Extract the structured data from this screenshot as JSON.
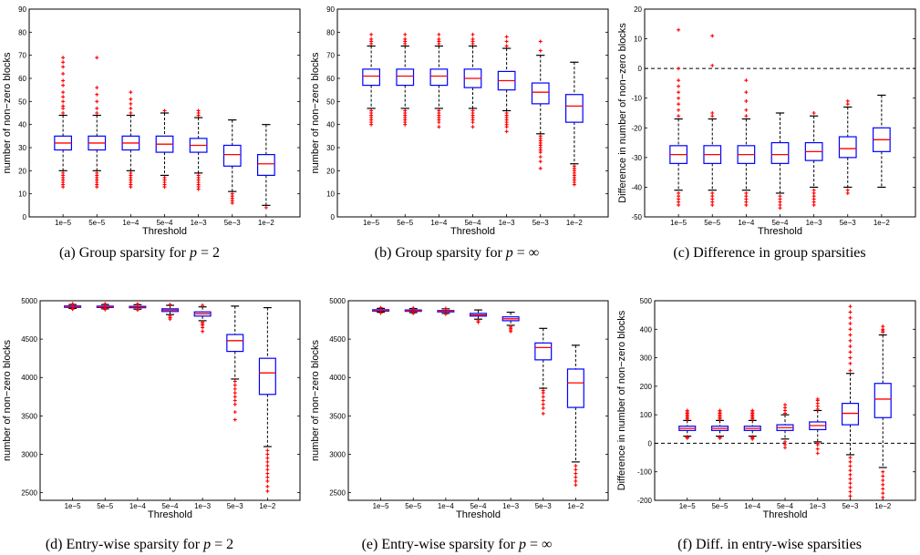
{
  "styles": {
    "box_color": "#0000ff",
    "median_color": "#ff0000",
    "outlier_color": "#ff0000",
    "whisker_color": "#000000"
  },
  "chart_data": [
    {
      "type": "boxplot",
      "caption": "(a) Group sparsity for p = 2",
      "caption_parts": [
        "(a) Group sparsity for ",
        "p",
        " = 2"
      ],
      "xlabel": "Threshold",
      "ylabel": "number of non−zero blocks",
      "ylim": [
        0,
        90
      ],
      "yticks": [
        0,
        10,
        20,
        30,
        40,
        50,
        60,
        70,
        80,
        90
      ],
      "categories": [
        "1e−5",
        "5e−5",
        "1e−4",
        "5e−4",
        "1e−3",
        "5e−3",
        "1e−2"
      ],
      "boxes": [
        {
          "whislo": 20,
          "q1": 29,
          "med": 32,
          "q3": 35,
          "whishi": 44,
          "outliers": [
            13,
            14,
            15,
            16,
            17,
            18,
            19,
            45,
            47,
            48,
            50,
            52,
            54,
            57,
            59,
            62,
            65,
            67,
            69
          ]
        },
        {
          "whislo": 20,
          "q1": 29,
          "med": 32,
          "q3": 35,
          "whishi": 44,
          "outliers": [
            13,
            14,
            15,
            16,
            17,
            18,
            19,
            45,
            47,
            50,
            53,
            56,
            69
          ]
        },
        {
          "whislo": 20,
          "q1": 29,
          "med": 32,
          "q3": 35,
          "whishi": 44,
          "outliers": [
            13,
            14,
            15,
            16,
            17,
            18,
            19,
            45,
            47,
            49,
            51,
            54
          ]
        },
        {
          "whislo": 18,
          "q1": 28,
          "med": 31.5,
          "q3": 35,
          "whishi": 45,
          "outliers": [
            13,
            14,
            15,
            16,
            17,
            46
          ]
        },
        {
          "whislo": 19,
          "q1": 28,
          "med": 31,
          "q3": 34,
          "whishi": 43,
          "outliers": [
            12,
            13,
            14,
            15,
            16,
            17,
            18,
            44,
            45,
            46
          ]
        },
        {
          "whislo": 11,
          "q1": 22,
          "med": 27,
          "q3": 31,
          "whishi": 42,
          "outliers": [
            6,
            7,
            8,
            9,
            10
          ]
        },
        {
          "whislo": 5,
          "q1": 18,
          "med": 23,
          "q3": 27,
          "whishi": 40,
          "outliers": [
            4
          ]
        }
      ]
    },
    {
      "type": "boxplot",
      "caption": "(b) Group sparsity for p = ∞",
      "caption_parts": [
        "(b) Group sparsity for ",
        "p",
        " = ∞"
      ],
      "xlabel": "Threshold",
      "ylabel": "number of non−zero blocks",
      "ylim": [
        0,
        90
      ],
      "yticks": [
        0,
        10,
        20,
        30,
        40,
        50,
        60,
        70,
        80,
        90
      ],
      "categories": [
        "1e−5",
        "5e−5",
        "1e−4",
        "5e−4",
        "1e−3",
        "5e−3",
        "1e−2"
      ],
      "boxes": [
        {
          "whislo": 47,
          "q1": 57,
          "med": 61,
          "q3": 64,
          "whishi": 74,
          "outliers": [
            40,
            41,
            42,
            43,
            44,
            45,
            46,
            75,
            76,
            77,
            79
          ]
        },
        {
          "whislo": 47,
          "q1": 57,
          "med": 61,
          "q3": 64,
          "whishi": 74,
          "outliers": [
            40,
            41,
            42,
            43,
            44,
            45,
            46,
            75,
            76,
            77,
            79
          ]
        },
        {
          "whislo": 47,
          "q1": 57,
          "med": 61,
          "q3": 64,
          "whishi": 74,
          "outliers": [
            39,
            41,
            42,
            43,
            44,
            45,
            46,
            75,
            76,
            77,
            79
          ]
        },
        {
          "whislo": 47,
          "q1": 56,
          "med": 60,
          "q3": 64,
          "whishi": 74,
          "outliers": [
            39,
            41,
            42,
            43,
            44,
            45,
            46,
            75,
            76,
            77,
            79
          ]
        },
        {
          "whislo": 46,
          "q1": 55,
          "med": 59,
          "q3": 63,
          "whishi": 73,
          "outliers": [
            37,
            39,
            40,
            41,
            42,
            43,
            44,
            45,
            74,
            76,
            78
          ]
        },
        {
          "whislo": 36,
          "q1": 49,
          "med": 54,
          "q3": 58,
          "whishi": 70,
          "outliers": [
            21,
            24,
            26,
            28,
            29,
            30,
            31,
            32,
            33,
            34,
            35,
            72,
            76
          ]
        },
        {
          "whislo": 23,
          "q1": 41,
          "med": 48,
          "q3": 53,
          "whishi": 67,
          "outliers": [
            14,
            15,
            16,
            17,
            18,
            19,
            20,
            21,
            22
          ]
        }
      ]
    },
    {
      "type": "boxplot",
      "caption": "(c) Difference in group sparsities",
      "caption_parts": [
        "(c) Difference in group sparsities",
        "",
        ""
      ],
      "xlabel": "Threshold",
      "ylabel": "Difference in number of non−zero blocks",
      "ylim": [
        -50,
        20
      ],
      "yticks": [
        -50,
        -40,
        -30,
        -20,
        -10,
        0,
        10,
        20
      ],
      "hline": 0,
      "categories": [
        "1e−5",
        "5e−5",
        "1e−4",
        "5e−4",
        "1e−3",
        "5e−3",
        "1e−2"
      ],
      "boxes": [
        {
          "whislo": -41,
          "q1": -32,
          "med": -29,
          "q3": -26,
          "whishi": -17,
          "outliers": [
            -46,
            -45,
            -44,
            -43,
            -42,
            -16,
            -14,
            -12,
            -10,
            -8,
            -6,
            -4,
            0,
            13
          ]
        },
        {
          "whislo": -41,
          "q1": -32,
          "med": -29,
          "q3": -26,
          "whishi": -17,
          "outliers": [
            -46,
            -45,
            -44,
            -43,
            -42,
            -16,
            -15,
            1,
            11
          ]
        },
        {
          "whislo": -41,
          "q1": -32,
          "med": -29,
          "q3": -26,
          "whishi": -17,
          "outliers": [
            -46,
            -45,
            -44,
            -43,
            -42,
            -16,
            -14,
            -11,
            -8,
            -4
          ]
        },
        {
          "whislo": -42,
          "q1": -32,
          "med": -29,
          "q3": -25,
          "whishi": -15,
          "outliers": [
            -47,
            -46,
            -45,
            -44,
            -43
          ]
        },
        {
          "whislo": -40,
          "q1": -31,
          "med": -28,
          "q3": -25,
          "whishi": -16,
          "outliers": [
            -46,
            -45,
            -44,
            -43,
            -42,
            -41,
            -15
          ]
        },
        {
          "whislo": -40,
          "q1": -30,
          "med": -27,
          "q3": -23,
          "whishi": -13,
          "outliers": [
            -42,
            -41,
            -12,
            -11
          ]
        },
        {
          "whislo": -40,
          "q1": -28,
          "med": -24,
          "q3": -20,
          "whishi": -9,
          "outliers": []
        }
      ]
    },
    {
      "type": "boxplot",
      "caption": "(d) Entry-wise sparsity for p = 2",
      "caption_parts": [
        "(d) Entry-wise sparsity for ",
        "p",
        " = 2"
      ],
      "xlabel": "Threshold",
      "ylabel": "number of non−zero blocks",
      "ylim": [
        2400,
        5000
      ],
      "yticks": [
        2500,
        3000,
        3500,
        4000,
        4500,
        5000
      ],
      "categories": [
        "1e−5",
        "5e−5",
        "1e−4",
        "5e−4",
        "1e−3",
        "5e−3",
        "1e−2"
      ],
      "boxes": [
        {
          "whislo": 4900,
          "q1": 4918,
          "med": 4925,
          "q3": 4932,
          "whishi": 4950,
          "outliers": [
            4890,
            4895,
            4955,
            4960
          ]
        },
        {
          "whislo": 4895,
          "q1": 4915,
          "med": 4922,
          "q3": 4930,
          "whishi": 4950,
          "outliers": [
            4885,
            4890,
            4955,
            4960
          ]
        },
        {
          "whislo": 4890,
          "q1": 4910,
          "med": 4918,
          "q3": 4927,
          "whishi": 4948,
          "outliers": [
            4880,
            4885,
            4952,
            4958
          ]
        },
        {
          "whislo": 4820,
          "q1": 4860,
          "med": 4878,
          "q3": 4895,
          "whishi": 4940,
          "outliers": [
            4760,
            4780,
            4800,
            4950
          ]
        },
        {
          "whislo": 4740,
          "q1": 4800,
          "med": 4830,
          "q3": 4855,
          "whishi": 4920,
          "outliers": [
            4600,
            4650,
            4680,
            4700,
            4720,
            4940
          ]
        },
        {
          "whislo": 3980,
          "q1": 4340,
          "med": 4480,
          "q3": 4560,
          "whishi": 4930,
          "outliers": [
            3450,
            3550,
            3650,
            3700,
            3750,
            3800,
            3850,
            3900,
            3950
          ]
        },
        {
          "whislo": 3100,
          "q1": 3780,
          "med": 4060,
          "q3": 4250,
          "whishi": 4910,
          "outliers": [
            2520,
            2580,
            2650,
            2700,
            2750,
            2800,
            2850,
            2900,
            2950,
            3000,
            3050
          ]
        }
      ]
    },
    {
      "type": "boxplot",
      "caption": "(e) Entry-wise sparsity for p = ∞",
      "caption_parts": [
        "(e) Entry-wise sparsity for ",
        "p",
        " = ∞"
      ],
      "xlabel": "Threshold",
      "ylabel": "number of non−zero blocks",
      "ylim": [
        2400,
        5000
      ],
      "yticks": [
        2500,
        3000,
        3500,
        4000,
        4500,
        5000
      ],
      "categories": [
        "1e−5",
        "5e−5",
        "1e−4",
        "5e−4",
        "1e−3",
        "5e−3",
        "1e−2"
      ],
      "boxes": [
        {
          "whislo": 4850,
          "q1": 4868,
          "med": 4875,
          "q3": 4883,
          "whishi": 4900,
          "outliers": [
            4840,
            4910
          ]
        },
        {
          "whislo": 4845,
          "q1": 4862,
          "med": 4870,
          "q3": 4880,
          "whishi": 4898,
          "outliers": [
            4835,
            4905
          ]
        },
        {
          "whislo": 4835,
          "q1": 4855,
          "med": 4862,
          "q3": 4872,
          "whishi": 4895,
          "outliers": [
            4825,
            4900
          ]
        },
        {
          "whislo": 4760,
          "q1": 4800,
          "med": 4815,
          "q3": 4835,
          "whishi": 4880,
          "outliers": [
            4720,
            4740
          ]
        },
        {
          "whislo": 4680,
          "q1": 4740,
          "med": 4765,
          "q3": 4790,
          "whishi": 4850,
          "outliers": [
            4600,
            4620,
            4640,
            4660
          ]
        },
        {
          "whislo": 3860,
          "q1": 4230,
          "med": 4390,
          "q3": 4450,
          "whishi": 4640,
          "outliers": [
            3530,
            3600,
            3650,
            3700,
            3750,
            3800,
            3830
          ]
        },
        {
          "whislo": 2900,
          "q1": 3610,
          "med": 3930,
          "q3": 4110,
          "whishi": 4420,
          "outliers": [
            2600,
            2650,
            2700,
            2750,
            2800,
            2850
          ]
        }
      ]
    },
    {
      "type": "boxplot",
      "caption": "(f) Diff. in entry-wise sparsities",
      "caption_parts": [
        "(f) Diff. in entry-wise sparsities",
        "",
        ""
      ],
      "xlabel": "Threshold",
      "ylabel": "Difference in number of non−zero blocks",
      "ylim": [
        -200,
        500
      ],
      "yticks": [
        -200,
        -100,
        0,
        100,
        200,
        300,
        400,
        500
      ],
      "hline": 0,
      "categories": [
        "1e−5",
        "5e−5",
        "1e−4",
        "5e−4",
        "1e−3",
        "5e−3",
        "1e−2"
      ],
      "boxes": [
        {
          "whislo": 25,
          "q1": 45,
          "med": 52,
          "q3": 60,
          "whishi": 80,
          "outliers": [
            18,
            20,
            22,
            85,
            90,
            95,
            100,
            105,
            110,
            115
          ]
        },
        {
          "whislo": 25,
          "q1": 45,
          "med": 52,
          "q3": 60,
          "whishi": 80,
          "outliers": [
            18,
            20,
            22,
            85,
            90,
            95,
            100,
            105,
            110,
            115
          ]
        },
        {
          "whislo": 25,
          "q1": 45,
          "med": 52,
          "q3": 60,
          "whishi": 80,
          "outliers": [
            15,
            18,
            22,
            85,
            90,
            95,
            100,
            105,
            110,
            115
          ]
        },
        {
          "whislo": 15,
          "q1": 45,
          "med": 55,
          "q3": 65,
          "whishi": 100,
          "outliers": [
            -15,
            -5,
            5,
            105,
            115,
            125,
            135
          ]
        },
        {
          "whislo": 5,
          "q1": 48,
          "med": 62,
          "q3": 75,
          "whishi": 115,
          "outliers": [
            -35,
            -20,
            -5,
            0,
            120,
            130,
            140,
            150,
            155
          ]
        },
        {
          "whislo": -40,
          "q1": 65,
          "med": 105,
          "q3": 140,
          "whishi": 245,
          "outliers": [
            -185,
            -170,
            -155,
            -140,
            -125,
            -110,
            -95,
            -80,
            -65,
            -50,
            255,
            280,
            300,
            320,
            340,
            360,
            380,
            400,
            420,
            440,
            460,
            480
          ]
        },
        {
          "whislo": -85,
          "q1": 90,
          "med": 155,
          "q3": 210,
          "whishi": 380,
          "outliers": [
            -190,
            -175,
            -160,
            -145,
            -130,
            -115,
            -100,
            390,
            395,
            400,
            410
          ]
        }
      ]
    }
  ]
}
